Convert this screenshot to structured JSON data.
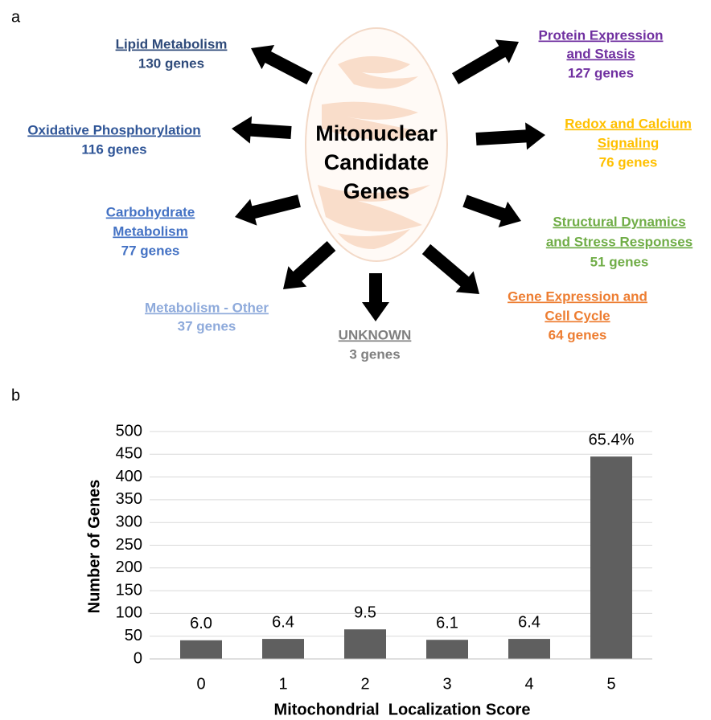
{
  "panel_labels": [
    "a",
    "b"
  ],
  "diagram": {
    "center": {
      "lines": [
        "Mitonuclear",
        "Candidate",
        "Genes"
      ]
    },
    "groups": [
      {
        "title": [
          "Lipid Metabolism"
        ],
        "count": "130 genes",
        "color": "#2e4a7a"
      },
      {
        "title": [
          "Protein Expression",
          "and Stasis"
        ],
        "count": "127 genes",
        "color": "#7030a0"
      },
      {
        "title": [
          "Oxidative Phosphorylation"
        ],
        "count": "116 genes",
        "color": "#2f5597"
      },
      {
        "title": [
          "Redox and Calcium",
          "Signaling"
        ],
        "count": "76 genes",
        "color": "#ffc000"
      },
      {
        "title": [
          "Carbohydrate",
          "Metabolism"
        ],
        "count": "77 genes",
        "color": "#4472c4"
      },
      {
        "title": [
          "Structural Dynamics",
          "and Stress Responses"
        ],
        "count": "51 genes",
        "color": "#70ad47"
      },
      {
        "title": [
          "Metabolism - Other"
        ],
        "count": "37 genes",
        "color": "#8eaadb"
      },
      {
        "title": [
          "UNKNOWN"
        ],
        "count": "3 genes",
        "color": "#7f7f7f"
      },
      {
        "title": [
          "Gene Expression and",
          "Cell Cycle"
        ],
        "count": "64 genes",
        "color": "#ed7d31"
      }
    ]
  },
  "chart_data": {
    "type": "bar",
    "categories": [
      "0",
      "1",
      "2",
      "3",
      "4",
      "5"
    ],
    "values": [
      41,
      44,
      65,
      42,
      44,
      445
    ],
    "annotations": [
      "6.0",
      "6.4",
      "9.5",
      "6.1",
      "6.4",
      "65.4%"
    ],
    "color": "#5f5f5f",
    "xlabel": "Mitochondrial  Localization Score",
    "ylabel": "Number of Genes",
    "ylim": [
      0,
      500
    ],
    "yticks": [
      0,
      50,
      100,
      150,
      200,
      250,
      300,
      350,
      400,
      450,
      500
    ],
    "grid": true
  }
}
